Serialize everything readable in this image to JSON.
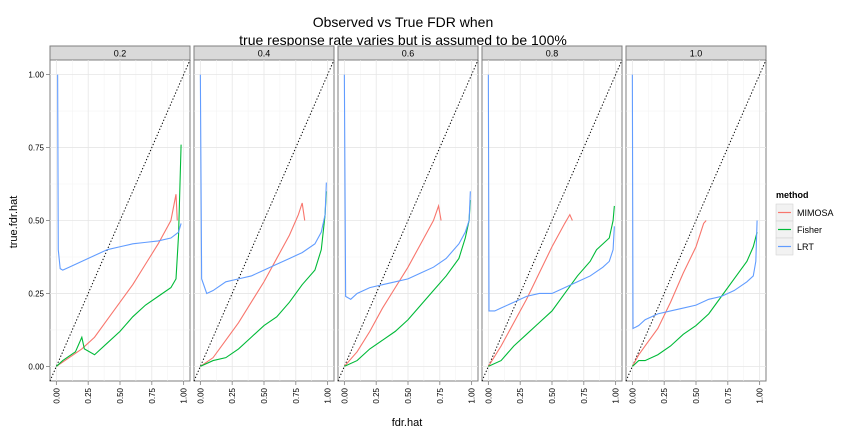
{
  "chart_data": {
    "type": "line",
    "title_line1": "Observed vs True FDR when",
    "title_line2": "true response rate varies but is assumed to be 100%",
    "xlabel": "fdr.hat",
    "ylabel": "true.fdr.hat",
    "xlim": [
      -0.05,
      1.05
    ],
    "ylim": [
      -0.05,
      1.05
    ],
    "x_ticks": [
      "0.00",
      "0.25",
      "0.50",
      "0.75",
      "1.00"
    ],
    "y_ticks": [
      "0.00",
      "0.25",
      "0.50",
      "0.75",
      "1.00"
    ],
    "reference_line": "y = x (dotted)",
    "grid": true,
    "legend": {
      "title": "method",
      "position": "right",
      "entries": [
        {
          "name": "MIMOSA",
          "color": "#F8766D"
        },
        {
          "name": "Fisher",
          "color": "#00BA38"
        },
        {
          "name": "LRT",
          "color": "#619CFF"
        }
      ]
    },
    "panels": [
      {
        "label": "0.2",
        "series": [
          {
            "name": "MIMOSA",
            "points": [
              [
                0.0,
                0.0
              ],
              [
                0.1,
                0.03
              ],
              [
                0.2,
                0.06
              ],
              [
                0.3,
                0.1
              ],
              [
                0.4,
                0.16
              ],
              [
                0.5,
                0.22
              ],
              [
                0.6,
                0.28
              ],
              [
                0.7,
                0.35
              ],
              [
                0.8,
                0.42
              ],
              [
                0.9,
                0.5
              ],
              [
                0.94,
                0.59
              ],
              [
                0.95,
                0.5
              ]
            ]
          },
          {
            "name": "Fisher",
            "points": [
              [
                0.0,
                0.0
              ],
              [
                0.05,
                0.02
              ],
              [
                0.15,
                0.05
              ],
              [
                0.2,
                0.1
              ],
              [
                0.22,
                0.06
              ],
              [
                0.3,
                0.04
              ],
              [
                0.4,
                0.08
              ],
              [
                0.5,
                0.12
              ],
              [
                0.6,
                0.17
              ],
              [
                0.7,
                0.21
              ],
              [
                0.8,
                0.24
              ],
              [
                0.9,
                0.27
              ],
              [
                0.94,
                0.3
              ],
              [
                0.96,
                0.45
              ],
              [
                0.98,
                0.76
              ]
            ]
          },
          {
            "name": "LRT",
            "points": [
              [
                0.01,
                1.0
              ],
              [
                0.015,
                0.4
              ],
              [
                0.03,
                0.335
              ],
              [
                0.05,
                0.33
              ],
              [
                0.1,
                0.34
              ],
              [
                0.2,
                0.36
              ],
              [
                0.3,
                0.38
              ],
              [
                0.4,
                0.4
              ],
              [
                0.5,
                0.41
              ],
              [
                0.6,
                0.42
              ],
              [
                0.7,
                0.425
              ],
              [
                0.8,
                0.43
              ],
              [
                0.9,
                0.44
              ],
              [
                0.96,
                0.46
              ],
              [
                0.98,
                0.49
              ]
            ]
          }
        ]
      },
      {
        "label": "0.4",
        "series": [
          {
            "name": "MIMOSA",
            "points": [
              [
                0.0,
                0.0
              ],
              [
                0.1,
                0.03
              ],
              [
                0.2,
                0.09
              ],
              [
                0.3,
                0.15
              ],
              [
                0.4,
                0.22
              ],
              [
                0.5,
                0.29
              ],
              [
                0.6,
                0.37
              ],
              [
                0.7,
                0.45
              ],
              [
                0.77,
                0.52
              ],
              [
                0.8,
                0.56
              ],
              [
                0.82,
                0.5
              ]
            ]
          },
          {
            "name": "Fisher",
            "points": [
              [
                0.0,
                0.0
              ],
              [
                0.1,
                0.02
              ],
              [
                0.2,
                0.03
              ],
              [
                0.3,
                0.06
              ],
              [
                0.4,
                0.1
              ],
              [
                0.5,
                0.14
              ],
              [
                0.6,
                0.17
              ],
              [
                0.7,
                0.22
              ],
              [
                0.8,
                0.28
              ],
              [
                0.9,
                0.33
              ],
              [
                0.95,
                0.4
              ],
              [
                0.98,
                0.52
              ],
              [
                0.99,
                0.6
              ]
            ]
          },
          {
            "name": "LRT",
            "points": [
              [
                0.0,
                1.0
              ],
              [
                0.01,
                0.3
              ],
              [
                0.05,
                0.25
              ],
              [
                0.1,
                0.26
              ],
              [
                0.2,
                0.29
              ],
              [
                0.3,
                0.3
              ],
              [
                0.4,
                0.31
              ],
              [
                0.5,
                0.33
              ],
              [
                0.6,
                0.35
              ],
              [
                0.7,
                0.37
              ],
              [
                0.8,
                0.39
              ],
              [
                0.9,
                0.42
              ],
              [
                0.95,
                0.46
              ],
              [
                0.98,
                0.52
              ],
              [
                0.99,
                0.63
              ]
            ]
          }
        ]
      },
      {
        "label": "0.6",
        "series": [
          {
            "name": "MIMOSA",
            "points": [
              [
                0.0,
                0.0
              ],
              [
                0.1,
                0.05
              ],
              [
                0.2,
                0.12
              ],
              [
                0.3,
                0.2
              ],
              [
                0.4,
                0.27
              ],
              [
                0.5,
                0.34
              ],
              [
                0.6,
                0.42
              ],
              [
                0.7,
                0.5
              ],
              [
                0.74,
                0.55
              ],
              [
                0.76,
                0.5
              ]
            ]
          },
          {
            "name": "Fisher",
            "points": [
              [
                0.0,
                0.0
              ],
              [
                0.1,
                0.02
              ],
              [
                0.2,
                0.06
              ],
              [
                0.3,
                0.09
              ],
              [
                0.4,
                0.12
              ],
              [
                0.5,
                0.16
              ],
              [
                0.6,
                0.21
              ],
              [
                0.7,
                0.26
              ],
              [
                0.8,
                0.31
              ],
              [
                0.9,
                0.37
              ],
              [
                0.95,
                0.44
              ],
              [
                0.98,
                0.5
              ],
              [
                0.99,
                0.57
              ]
            ]
          },
          {
            "name": "LRT",
            "points": [
              [
                0.0,
                1.0
              ],
              [
                0.01,
                0.24
              ],
              [
                0.05,
                0.23
              ],
              [
                0.1,
                0.25
              ],
              [
                0.2,
                0.27
              ],
              [
                0.3,
                0.28
              ],
              [
                0.4,
                0.29
              ],
              [
                0.5,
                0.3
              ],
              [
                0.6,
                0.32
              ],
              [
                0.7,
                0.34
              ],
              [
                0.8,
                0.37
              ],
              [
                0.9,
                0.42
              ],
              [
                0.95,
                0.46
              ],
              [
                0.98,
                0.5
              ],
              [
                0.99,
                0.6
              ]
            ]
          }
        ]
      },
      {
        "label": "0.8",
        "series": [
          {
            "name": "MIMOSA",
            "points": [
              [
                0.0,
                0.0
              ],
              [
                0.1,
                0.07
              ],
              [
                0.2,
                0.15
              ],
              [
                0.3,
                0.23
              ],
              [
                0.4,
                0.32
              ],
              [
                0.5,
                0.41
              ],
              [
                0.6,
                0.49
              ],
              [
                0.64,
                0.52
              ],
              [
                0.66,
                0.5
              ]
            ]
          },
          {
            "name": "Fisher",
            "points": [
              [
                0.0,
                0.0
              ],
              [
                0.1,
                0.02
              ],
              [
                0.2,
                0.07
              ],
              [
                0.3,
                0.11
              ],
              [
                0.4,
                0.15
              ],
              [
                0.5,
                0.19
              ],
              [
                0.6,
                0.25
              ],
              [
                0.7,
                0.31
              ],
              [
                0.8,
                0.36
              ],
              [
                0.85,
                0.4
              ],
              [
                0.9,
                0.42
              ],
              [
                0.95,
                0.44
              ],
              [
                0.98,
                0.5
              ],
              [
                0.99,
                0.55
              ]
            ]
          },
          {
            "name": "LRT",
            "points": [
              [
                0.0,
                1.0
              ],
              [
                0.005,
                0.19
              ],
              [
                0.05,
                0.19
              ],
              [
                0.1,
                0.2
              ],
              [
                0.2,
                0.22
              ],
              [
                0.3,
                0.24
              ],
              [
                0.4,
                0.25
              ],
              [
                0.5,
                0.25
              ],
              [
                0.6,
                0.27
              ],
              [
                0.7,
                0.29
              ],
              [
                0.8,
                0.31
              ],
              [
                0.9,
                0.34
              ],
              [
                0.95,
                0.36
              ],
              [
                0.98,
                0.4
              ],
              [
                0.99,
                0.48
              ]
            ]
          }
        ]
      },
      {
        "label": "1.0",
        "series": [
          {
            "name": "MIMOSA",
            "points": [
              [
                0.0,
                0.0
              ],
              [
                0.05,
                0.04
              ],
              [
                0.1,
                0.07
              ],
              [
                0.2,
                0.13
              ],
              [
                0.3,
                0.22
              ],
              [
                0.4,
                0.32
              ],
              [
                0.5,
                0.41
              ],
              [
                0.56,
                0.49
              ],
              [
                0.58,
                0.5
              ]
            ]
          },
          {
            "name": "Fisher",
            "points": [
              [
                0.0,
                0.0
              ],
              [
                0.05,
                0.02
              ],
              [
                0.1,
                0.02
              ],
              [
                0.2,
                0.04
              ],
              [
                0.3,
                0.07
              ],
              [
                0.4,
                0.11
              ],
              [
                0.5,
                0.14
              ],
              [
                0.6,
                0.18
              ],
              [
                0.7,
                0.24
              ],
              [
                0.8,
                0.3
              ],
              [
                0.9,
                0.36
              ],
              [
                0.95,
                0.41
              ],
              [
                0.98,
                0.46
              ]
            ]
          },
          {
            "name": "LRT",
            "points": [
              [
                0.0,
                1.0
              ],
              [
                0.005,
                0.13
              ],
              [
                0.05,
                0.14
              ],
              [
                0.1,
                0.16
              ],
              [
                0.2,
                0.18
              ],
              [
                0.3,
                0.19
              ],
              [
                0.4,
                0.2
              ],
              [
                0.5,
                0.21
              ],
              [
                0.6,
                0.23
              ],
              [
                0.7,
                0.24
              ],
              [
                0.8,
                0.26
              ],
              [
                0.9,
                0.29
              ],
              [
                0.95,
                0.31
              ],
              [
                0.97,
                0.36
              ],
              [
                0.98,
                0.5
              ]
            ]
          }
        ]
      }
    ]
  }
}
